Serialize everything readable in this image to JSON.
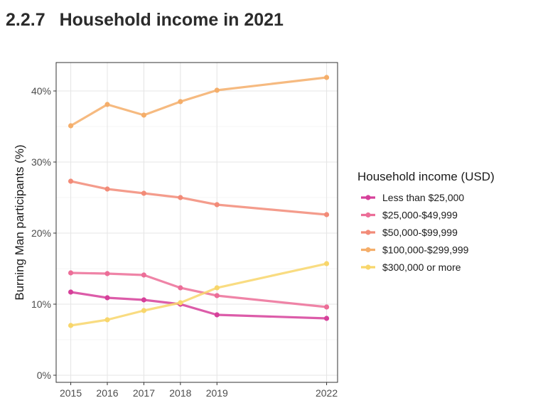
{
  "section": {
    "number": "2.2.7",
    "title": "Household income in 2021"
  },
  "chart_data": {
    "type": "line",
    "x": [
      2015,
      2016,
      2017,
      2018,
      2019,
      2022
    ],
    "xlim": [
      2014.6,
      2022.3
    ],
    "ylim": [
      -1,
      44
    ],
    "yticks": [
      0,
      10,
      20,
      30,
      40
    ],
    "ytick_labels": [
      "0%",
      "10%",
      "20%",
      "30%",
      "40%"
    ],
    "xtick_labels": [
      "2015",
      "2016",
      "2017",
      "2018",
      "2019",
      "2022"
    ],
    "ylabel": "Burning Man participants (%)",
    "xlabel": "",
    "grid": true,
    "legend": {
      "title": "Household income (USD)",
      "position": "right"
    },
    "series": [
      {
        "name": "Less than $25,000",
        "color": "#d6409a",
        "values": [
          11.7,
          10.9,
          10.6,
          10.0,
          8.5,
          8.0
        ]
      },
      {
        "name": "$25,000-$49,999",
        "color": "#ec6e98",
        "values": [
          14.4,
          14.3,
          14.1,
          12.3,
          11.2,
          9.6
        ]
      },
      {
        "name": "$50,000-$99,999",
        "color": "#f28b78",
        "values": [
          27.3,
          26.2,
          25.6,
          25.0,
          24.0,
          22.6
        ]
      },
      {
        "name": "$100,000-$299,999",
        "color": "#f5ae6a",
        "values": [
          35.1,
          38.1,
          36.6,
          38.5,
          40.1,
          41.9
        ]
      },
      {
        "name": "$300,000 or more",
        "color": "#f8d66b",
        "values": [
          7.0,
          7.8,
          9.1,
          10.2,
          12.3,
          15.7
        ]
      }
    ]
  }
}
